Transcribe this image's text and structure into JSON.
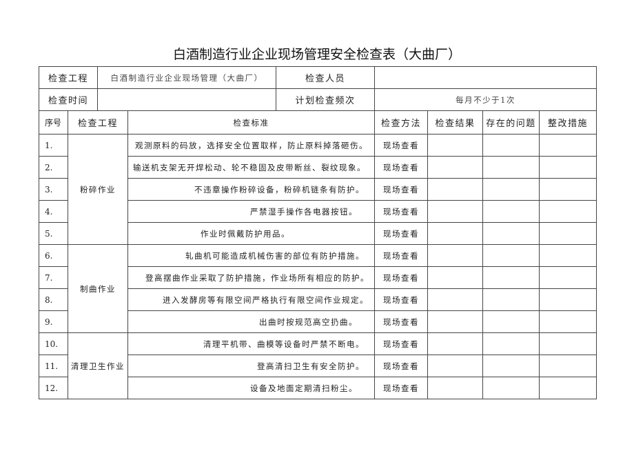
{
  "title": "白酒制造行业企业现场管理安全检查表（大曲厂）",
  "header": {
    "project_label": "检查工程",
    "project_value": "白酒制造行业企业现场管理（大曲厂）",
    "inspector_label": "检查人员",
    "inspector_value": "",
    "time_label": "检查时间",
    "time_value": "",
    "frequency_label": "计划检查频次",
    "frequency_value": "每月不少于1次"
  },
  "columns": [
    "序号",
    "检查工程",
    "检查标准",
    "检查方法",
    "检查结果",
    "存在的问题",
    "整改措施"
  ],
  "groups": [
    "粉碎作业",
    "制曲作业",
    "清理卫生作业"
  ],
  "rows": [
    {
      "seq": "1.",
      "standard": "观测原料的码放，选择安全位置取样，防止原料掉落砸伤。",
      "method": "现场查看"
    },
    {
      "seq": "2.",
      "standard": "输送机支架无开焊松动、轮不稳固及皮带断丝、裂纹现象。",
      "method": "现场查看"
    },
    {
      "seq": "3.",
      "standard": "不违章操作粉碎设备，粉碎机链条有防护。",
      "method": "现场查看"
    },
    {
      "seq": "4.",
      "standard": "严禁湿手操作各电器按钮。",
      "method": "现场查看"
    },
    {
      "seq": "5.",
      "standard": "作业时佩戴防护用品。",
      "method": "现场查看"
    },
    {
      "seq": "6.",
      "standard": "轧曲机可能造成机械伤害的部位有防护措施。",
      "method": "现场查看"
    },
    {
      "seq": "7.",
      "standard": "登高摆曲作业采取了防护措施，作业场所有相应的防护。",
      "method": "现场查看"
    },
    {
      "seq": "8.",
      "standard": "进入发酵房等有限空间严格执行有限空间作业规定。",
      "method": "现场查看"
    },
    {
      "seq": "9.",
      "standard": "出曲时按规范高空扔曲。",
      "method": "现场查看"
    },
    {
      "seq": "10.",
      "standard": "清理平机带、曲模等设备时严禁不断电。",
      "method": "现场查看"
    },
    {
      "seq": "11.",
      "standard": "登高清扫卫生有安全防护。",
      "method": "现场查看"
    },
    {
      "seq": "12.",
      "standard": "设备及地面定期清扫粉尘。",
      "method": "现场查看"
    }
  ]
}
